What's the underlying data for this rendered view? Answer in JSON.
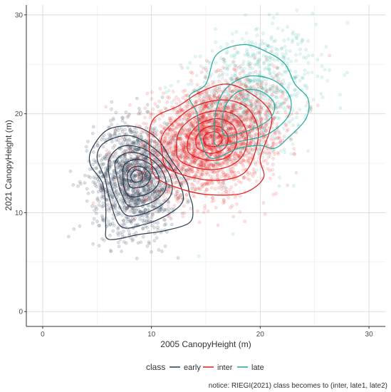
{
  "chart_data": {
    "type": "scatter",
    "xlabel": "2005 CanopyHeight (m)",
    "ylabel": "2021 CanopyHeight (m)",
    "xlim": [
      -1.5,
      31.5
    ],
    "ylim": [
      -1.5,
      31
    ],
    "x_ticks": [
      0,
      10,
      20,
      30
    ],
    "y_ticks": [
      0,
      10,
      20,
      30
    ],
    "grid": true,
    "legend": {
      "title": "class",
      "position": "bottom",
      "entries": [
        "early",
        "inter",
        "late"
      ]
    },
    "notice": "notice: RIEGI(2021) class becomes to (inter, late1, late2)",
    "series": [
      {
        "name": "early",
        "color": "#2b3a4e",
        "point_alpha": 0.15,
        "approx_center": [
          8.5,
          13.5
        ],
        "approx_spread": [
          1.9,
          2.8
        ],
        "approx_count": 1400,
        "contours": [
          [
            [
              6.1,
              7.3
            ],
            [
              8.9,
              7.8
            ],
            [
              11.3,
              8.2
            ],
            [
              13.5,
              9.0
            ],
            [
              13.8,
              10.5
            ],
            [
              13.5,
              11.8
            ],
            [
              13.2,
              13.2
            ],
            [
              11.9,
              15.2
            ],
            [
              10.5,
              17.5
            ],
            [
              8.5,
              18.7
            ],
            [
              6.0,
              18.4
            ],
            [
              4.5,
              16.4
            ],
            [
              4.4,
              14.8
            ],
            [
              5.5,
              13.0
            ],
            [
              5.8,
              10.5
            ],
            [
              5.8,
              8.6
            ]
          ],
          [
            [
              7.2,
              8.6
            ],
            [
              9.3,
              8.8
            ],
            [
              11.5,
              9.8
            ],
            [
              12.9,
              11.2
            ],
            [
              12.5,
              13.2
            ],
            [
              11.6,
              15.0
            ],
            [
              9.9,
              16.8
            ],
            [
              7.9,
              17.8
            ],
            [
              5.7,
              17.1
            ],
            [
              5.0,
              15.6
            ],
            [
              5.7,
              13.5
            ],
            [
              6.2,
              11.2
            ]
          ],
          [
            [
              7.8,
              9.7
            ],
            [
              10.0,
              10.2
            ],
            [
              11.7,
              11.6
            ],
            [
              11.8,
              13.4
            ],
            [
              10.8,
              15.2
            ],
            [
              9.2,
              16.5
            ],
            [
              7.3,
              16.7
            ],
            [
              6.1,
              15.4
            ],
            [
              6.2,
              13.2
            ],
            [
              6.8,
              11.3
            ]
          ],
          [
            [
              8.1,
              10.6
            ],
            [
              10.1,
              11.1
            ],
            [
              11.3,
              12.4
            ],
            [
              11.0,
              14.2
            ],
            [
              9.7,
              15.6
            ],
            [
              8.0,
              16.1
            ],
            [
              6.7,
              15.2
            ],
            [
              6.9,
              13.3
            ],
            [
              7.3,
              11.8
            ]
          ],
          [
            [
              8.2,
              11.6
            ],
            [
              9.8,
              12.0
            ],
            [
              10.7,
              13.2
            ],
            [
              10.1,
              14.7
            ],
            [
              8.7,
              15.4
            ],
            [
              7.5,
              14.8
            ],
            [
              7.4,
              13.3
            ],
            [
              7.6,
              12.2
            ]
          ],
          [
            [
              8.3,
              12.5
            ],
            [
              9.5,
              12.8
            ],
            [
              9.9,
              13.8
            ],
            [
              9.2,
              14.6
            ],
            [
              8.3,
              14.6
            ],
            [
              7.8,
              13.9
            ],
            [
              7.9,
              12.9
            ]
          ],
          [
            [
              8.4,
              13.1
            ],
            [
              9.1,
              13.3
            ],
            [
              9.1,
              14.1
            ],
            [
              8.5,
              14.3
            ],
            [
              8.1,
              13.7
            ]
          ]
        ]
      },
      {
        "name": "inter",
        "color": "#e31a1c",
        "point_alpha": 0.12,
        "approx_center": [
          15.5,
          17.5
        ],
        "approx_spread": [
          3.0,
          2.6
        ],
        "approx_count": 2600,
        "contours": [
          [
            [
              10.5,
              13.5
            ],
            [
              13.0,
              12.3
            ],
            [
              15.5,
              11.8
            ],
            [
              18.5,
              12.0
            ],
            [
              20.3,
              13.5
            ],
            [
              20.0,
              15.5
            ],
            [
              20.8,
              18.0
            ],
            [
              21.0,
              20.0
            ],
            [
              19.5,
              21.8
            ],
            [
              17.0,
              23.0
            ],
            [
              14.5,
              22.2
            ],
            [
              12.5,
              20.8
            ],
            [
              10.2,
              19.5
            ],
            [
              9.8,
              17.0
            ],
            [
              10.0,
              15.0
            ]
          ],
          [
            [
              11.5,
              14.5
            ],
            [
              14.0,
              13.5
            ],
            [
              16.5,
              13.3
            ],
            [
              18.5,
              14.0
            ],
            [
              19.5,
              16.0
            ],
            [
              19.8,
              18.5
            ],
            [
              18.8,
              20.6
            ],
            [
              16.8,
              21.4
            ],
            [
              14.3,
              20.9
            ],
            [
              12.5,
              19.6
            ],
            [
              11.0,
              17.8
            ],
            [
              11.0,
              16.0
            ]
          ],
          [
            [
              12.7,
              15.2
            ],
            [
              14.8,
              14.4
            ],
            [
              16.9,
              14.6
            ],
            [
              18.4,
              15.8
            ],
            [
              18.8,
              17.9
            ],
            [
              17.8,
              19.8
            ],
            [
              15.9,
              20.3
            ],
            [
              14.0,
              19.7
            ],
            [
              12.6,
              18.3
            ],
            [
              12.3,
              16.5
            ]
          ],
          [
            [
              13.6,
              15.9
            ],
            [
              15.3,
              15.3
            ],
            [
              16.9,
              15.6
            ],
            [
              17.8,
              16.9
            ],
            [
              17.6,
              18.7
            ],
            [
              16.2,
              19.5
            ],
            [
              14.6,
              19.1
            ],
            [
              13.6,
              18.0
            ],
            [
              13.3,
              16.8
            ]
          ],
          [
            [
              14.4,
              16.4
            ],
            [
              15.6,
              16.0
            ],
            [
              16.8,
              16.6
            ],
            [
              17.0,
              17.8
            ],
            [
              16.2,
              18.7
            ],
            [
              15.0,
              18.6
            ],
            [
              14.2,
              17.8
            ],
            [
              14.1,
              16.9
            ]
          ],
          [
            [
              15.0,
              16.9
            ],
            [
              15.9,
              16.7
            ],
            [
              16.5,
              17.3
            ],
            [
              16.1,
              18.1
            ],
            [
              15.3,
              18.1
            ],
            [
              14.8,
              17.6
            ]
          ]
        ]
      },
      {
        "name": "late",
        "color": "#1fa99c",
        "point_alpha": 0.12,
        "approx_center": [
          19.0,
          21.5
        ],
        "approx_spread": [
          3.0,
          3.4
        ],
        "approx_count": 900,
        "contours": [
          [
            [
              15.5,
              15.5
            ],
            [
              18.0,
              16.5
            ],
            [
              20.0,
              16.8
            ],
            [
              21.3,
              16.5
            ],
            [
              22.5,
              17.5
            ],
            [
              24.2,
              19.5
            ],
            [
              24.4,
              21.5
            ],
            [
              23.2,
              23.0
            ],
            [
              22.3,
              25.0
            ],
            [
              20.7,
              26.2
            ],
            [
              18.5,
              27.0
            ],
            [
              16.0,
              26.0
            ],
            [
              15.0,
              23.0
            ],
            [
              13.5,
              21.8
            ],
            [
              14.2,
              20.0
            ],
            [
              14.5,
              17.5
            ]
          ],
          [
            [
              16.0,
              16.8
            ],
            [
              18.5,
              17.3
            ],
            [
              20.8,
              18.0
            ],
            [
              22.6,
              19.8
            ],
            [
              22.7,
              21.8
            ],
            [
              21.2,
              23.4
            ],
            [
              18.9,
              23.8
            ],
            [
              16.9,
              22.6
            ],
            [
              16.0,
              20.6
            ],
            [
              15.8,
              18.5
            ]
          ],
          [
            [
              16.8,
              17.8
            ],
            [
              18.9,
              18.3
            ],
            [
              20.8,
              19.4
            ],
            [
              21.3,
              21.0
            ],
            [
              20.0,
              22.3
            ],
            [
              18.1,
              22.3
            ],
            [
              16.9,
              21.0
            ],
            [
              16.5,
              19.3
            ]
          ]
        ]
      }
    ]
  }
}
